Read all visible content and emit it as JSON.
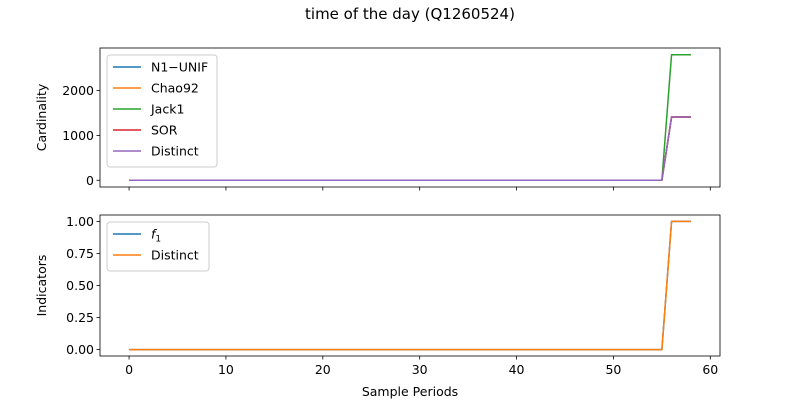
{
  "figure_title": "time of the day (Q1260524)",
  "chart_data": [
    {
      "type": "line",
      "ylabel": "Cardinality",
      "xlabel": "",
      "xlim": [
        -3,
        61
      ],
      "ylim": [
        -150,
        2950
      ],
      "yticks": [
        0,
        1000,
        2000
      ],
      "ytick_labels": [
        "0",
        "1000",
        "2000"
      ],
      "xticks": [
        0,
        10,
        20,
        30,
        40,
        50,
        60
      ],
      "xtick_labels_shown": false,
      "grid": false,
      "legend_position": "upper left",
      "series": [
        {
          "name": "N1−UNIF",
          "color": "#1f77b4",
          "x": [
            0,
            55,
            56,
            58
          ],
          "y": [
            0,
            0,
            1410,
            1410
          ]
        },
        {
          "name": "Chao92",
          "color": "#ff7f0e",
          "x": [
            0,
            55,
            56,
            58
          ],
          "y": [
            0,
            0,
            1410,
            1410
          ]
        },
        {
          "name": "Jack1",
          "color": "#2ca02c",
          "x": [
            0,
            55,
            56,
            58
          ],
          "y": [
            0,
            0,
            2800,
            2800
          ]
        },
        {
          "name": "SOR",
          "color": "#d62728",
          "x": [
            0,
            55,
            56,
            58
          ],
          "y": [
            0,
            0,
            1410,
            1410
          ]
        },
        {
          "name": "Distinct",
          "color": "#9467bd",
          "x": [
            0,
            55,
            56,
            58
          ],
          "y": [
            0,
            0,
            1410,
            1410
          ]
        }
      ]
    },
    {
      "type": "line",
      "ylabel": "Indicators",
      "xlabel": "Sample Periods",
      "xlim": [
        -3,
        61
      ],
      "ylim": [
        -0.05,
        1.05
      ],
      "yticks": [
        0,
        0.25,
        0.5,
        0.75,
        1.0
      ],
      "ytick_labels": [
        "0.00",
        "0.25",
        "0.50",
        "0.75",
        "1.00"
      ],
      "xticks": [
        0,
        10,
        20,
        30,
        40,
        50,
        60
      ],
      "xtick_labels": [
        "0",
        "10",
        "20",
        "30",
        "40",
        "50",
        "60"
      ],
      "grid": false,
      "legend_position": "upper left",
      "series": [
        {
          "name": "f1",
          "color": "#1f77b4",
          "x": [
            0,
            55,
            56,
            58
          ],
          "y": [
            0,
            0,
            1,
            1
          ]
        },
        {
          "name": "Distinct",
          "color": "#ff7f0e",
          "x": [
            0,
            55,
            56,
            58
          ],
          "y": [
            0,
            0,
            1,
            1
          ]
        }
      ]
    }
  ]
}
